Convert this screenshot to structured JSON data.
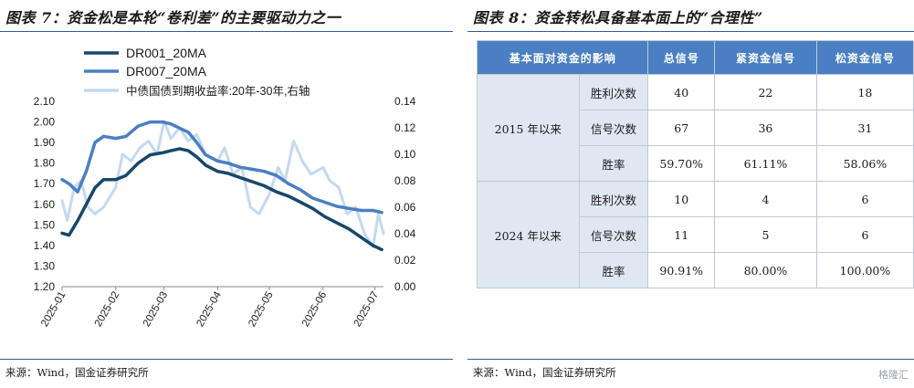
{
  "left": {
    "title": "图表 7：资金松是本轮“卷利差”的主要驱动力之一",
    "source": "来源：Wind，国金证券研究所"
  },
  "right": {
    "title": "图表 8：资金转松具备基本面上的“合理性”",
    "source": "来源：Wind，国金证券研究所",
    "table": {
      "headers": [
        "基本面对资金的影响",
        "总信号",
        "紧资金信号",
        "松资金信号"
      ],
      "groups": [
        {
          "period": "2015 年以来",
          "rows": [
            {
              "metric": "胜利次数",
              "total": "40",
              "tight": "22",
              "loose": "18"
            },
            {
              "metric": "信号次数",
              "total": "67",
              "tight": "36",
              "loose": "31"
            },
            {
              "metric": "胜率",
              "total": "59.70%",
              "tight": "61.11%",
              "loose": "58.06%"
            }
          ]
        },
        {
          "period": "2024 年以来",
          "rows": [
            {
              "metric": "胜利次数",
              "total": "10",
              "tight": "4",
              "loose": "6"
            },
            {
              "metric": "信号次数",
              "total": "11",
              "tight": "5",
              "loose": "6"
            },
            {
              "metric": "胜率",
              "total": "90.91%",
              "tight": "80.00%",
              "loose": "100.00%"
            }
          ]
        }
      ]
    }
  },
  "watermark": "格隆汇",
  "chart_data": {
    "type": "line",
    "title": "",
    "legend": [
      "DR001_20MA",
      "DR007_20MA",
      "中债国债到期收益率:20年-30年,右轴"
    ],
    "legend_position": "top-left",
    "x_ticks": [
      "2025-01",
      "2025-02",
      "2025-03",
      "2025-04",
      "2025-05",
      "2025-06",
      "2025-07"
    ],
    "y_left": {
      "range": [
        1.2,
        2.1
      ],
      "ticks": [
        "2.10",
        "2.00",
        "1.90",
        "1.80",
        "1.70",
        "1.60",
        "1.50",
        "1.40",
        "1.30",
        "1.20"
      ]
    },
    "y_right": {
      "range": [
        0.0,
        0.14
      ],
      "ticks": [
        "0.14",
        "0.12",
        "0.10",
        "0.08",
        "0.06",
        "0.04",
        "0.02",
        "0.00"
      ]
    },
    "colors": {
      "DR001_20MA": "#17476a",
      "DR007_20MA": "#4a7fc3",
      "spread": "#c3d9f0"
    },
    "series": [
      {
        "name": "DR001_20MA",
        "axis": "left",
        "x": [
          "2025-01-01",
          "2025-01-05",
          "2025-01-10",
          "2025-01-15",
          "2025-01-20",
          "2025-01-25",
          "2025-02-01",
          "2025-02-07",
          "2025-02-14",
          "2025-02-21",
          "2025-02-28",
          "2025-03-05",
          "2025-03-10",
          "2025-03-15",
          "2025-03-20",
          "2025-03-25",
          "2025-04-01",
          "2025-04-07",
          "2025-04-14",
          "2025-04-21",
          "2025-04-28",
          "2025-05-05",
          "2025-05-12",
          "2025-05-19",
          "2025-05-26",
          "2025-06-02",
          "2025-06-09",
          "2025-06-16",
          "2025-06-23",
          "2025-06-30",
          "2025-07-05"
        ],
        "y": [
          1.46,
          1.45,
          1.52,
          1.6,
          1.68,
          1.72,
          1.72,
          1.74,
          1.8,
          1.84,
          1.85,
          1.86,
          1.87,
          1.86,
          1.83,
          1.79,
          1.76,
          1.75,
          1.73,
          1.71,
          1.69,
          1.66,
          1.64,
          1.61,
          1.58,
          1.54,
          1.51,
          1.48,
          1.44,
          1.4,
          1.38
        ]
      },
      {
        "name": "DR007_20MA",
        "axis": "left",
        "x": [
          "2025-01-01",
          "2025-01-05",
          "2025-01-10",
          "2025-01-15",
          "2025-01-20",
          "2025-01-25",
          "2025-02-01",
          "2025-02-07",
          "2025-02-14",
          "2025-02-21",
          "2025-02-28",
          "2025-03-05",
          "2025-03-10",
          "2025-03-15",
          "2025-03-20",
          "2025-03-25",
          "2025-04-01",
          "2025-04-07",
          "2025-04-14",
          "2025-04-21",
          "2025-04-28",
          "2025-05-05",
          "2025-05-12",
          "2025-05-19",
          "2025-05-26",
          "2025-06-02",
          "2025-06-09",
          "2025-06-16",
          "2025-06-23",
          "2025-06-30",
          "2025-07-05"
        ],
        "y": [
          1.72,
          1.7,
          1.66,
          1.76,
          1.9,
          1.93,
          1.92,
          1.93,
          1.98,
          2.0,
          2.0,
          1.99,
          1.97,
          1.95,
          1.9,
          1.84,
          1.81,
          1.8,
          1.78,
          1.77,
          1.76,
          1.74,
          1.7,
          1.67,
          1.63,
          1.61,
          1.59,
          1.58,
          1.57,
          1.57,
          1.56
        ]
      },
      {
        "name": "中债国债到期收益率:20年-30年,右轴",
        "axis": "right",
        "x": [
          "2025-01-01",
          "2025-01-04",
          "2025-01-08",
          "2025-01-12",
          "2025-01-16",
          "2025-01-20",
          "2025-01-25",
          "2025-02-01",
          "2025-02-05",
          "2025-02-10",
          "2025-02-15",
          "2025-02-20",
          "2025-02-25",
          "2025-03-01",
          "2025-03-05",
          "2025-03-10",
          "2025-03-15",
          "2025-03-20",
          "2025-03-25",
          "2025-04-01",
          "2025-04-05",
          "2025-04-10",
          "2025-04-15",
          "2025-04-20",
          "2025-04-25",
          "2025-05-01",
          "2025-05-06",
          "2025-05-10",
          "2025-05-15",
          "2025-05-20",
          "2025-05-25",
          "2025-06-01",
          "2025-06-05",
          "2025-06-10",
          "2025-06-15",
          "2025-06-20",
          "2025-06-25",
          "2025-06-30",
          "2025-07-03",
          "2025-07-06"
        ],
        "y": [
          0.065,
          0.05,
          0.075,
          0.08,
          0.06,
          0.055,
          0.06,
          0.075,
          0.1,
          0.095,
          0.105,
          0.11,
          0.1,
          0.125,
          0.112,
          0.12,
          0.11,
          0.115,
          0.1,
          0.095,
          0.105,
          0.085,
          0.09,
          0.06,
          0.055,
          0.07,
          0.09,
          0.08,
          0.11,
          0.095,
          0.085,
          0.09,
          0.08,
          0.075,
          0.055,
          0.06,
          0.04,
          0.03,
          0.055,
          0.04
        ]
      }
    ]
  }
}
